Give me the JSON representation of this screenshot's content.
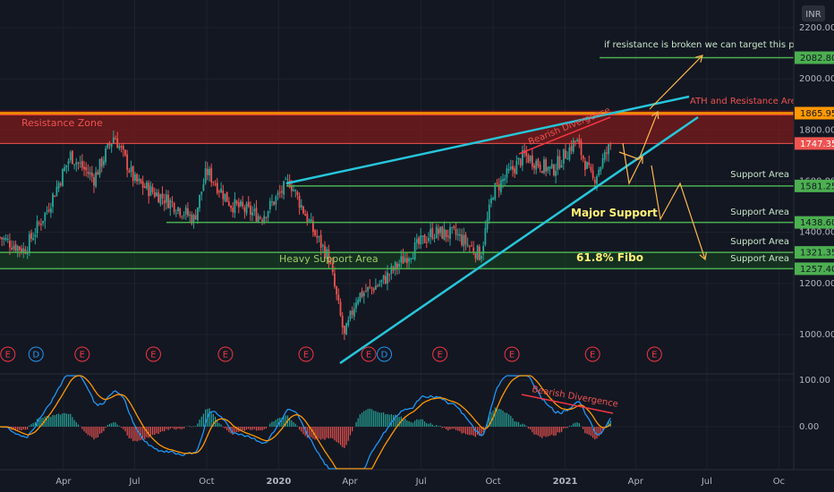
{
  "chart_data": [
    {
      "type": "candlestick",
      "currency": "INR",
      "ylim": [
        870,
        2300
      ],
      "y_ticks": [
        "2200.00",
        "2000.00",
        "1800.00",
        "1600.00",
        "1400.00",
        "1200.00",
        "1000.00"
      ],
      "y_tick_values": [
        2200,
        2000,
        1800,
        1600,
        1400,
        1200,
        1000
      ],
      "x_ticks": [
        "Apr",
        "Jul",
        "Oct",
        "2020",
        "Apr",
        "Jul",
        "Oct",
        "2021",
        "Apr",
        "Jul",
        "Oc"
      ],
      "x_tick_dates": [
        "2019-04-01",
        "2019-07-01",
        "2019-10-01",
        "2020-01-01",
        "2020-04-01",
        "2020-07-01",
        "2020-10-01",
        "2021-01-01",
        "2021-04-01",
        "2021-07-01",
        "2021-10-01"
      ],
      "x_range": [
        "2019-01-10",
        "2021-10-20"
      ],
      "price_key_points": [
        {
          "date": "2019-01-10",
          "price": 1380
        },
        {
          "date": "2019-02-10",
          "price": 1330
        },
        {
          "date": "2019-03-10",
          "price": 1480
        },
        {
          "date": "2019-04-10",
          "price": 1700
        },
        {
          "date": "2019-05-10",
          "price": 1610
        },
        {
          "date": "2019-06-05",
          "price": 1780
        },
        {
          "date": "2019-07-01",
          "price": 1600
        },
        {
          "date": "2019-08-15",
          "price": 1520
        },
        {
          "date": "2019-09-15",
          "price": 1450
        },
        {
          "date": "2019-10-01",
          "price": 1640
        },
        {
          "date": "2019-11-01",
          "price": 1510
        },
        {
          "date": "2019-12-10",
          "price": 1460
        },
        {
          "date": "2020-01-15",
          "price": 1600
        },
        {
          "date": "2020-02-15",
          "price": 1400
        },
        {
          "date": "2020-03-05",
          "price": 1300
        },
        {
          "date": "2020-03-25",
          "price": 990
        },
        {
          "date": "2020-04-10",
          "price": 1150
        },
        {
          "date": "2020-05-10",
          "price": 1200
        },
        {
          "date": "2020-06-10",
          "price": 1300
        },
        {
          "date": "2020-07-15",
          "price": 1400
        },
        {
          "date": "2020-08-15",
          "price": 1390
        },
        {
          "date": "2020-09-15",
          "price": 1310
        },
        {
          "date": "2020-10-01",
          "price": 1560
        },
        {
          "date": "2020-11-10",
          "price": 1700
        },
        {
          "date": "2020-12-15",
          "price": 1640
        },
        {
          "date": "2021-01-15",
          "price": 1760
        },
        {
          "date": "2021-02-05",
          "price": 1600
        },
        {
          "date": "2021-03-01",
          "price": 1747.35
        }
      ],
      "last_price": "1747.35",
      "levels": [
        {
          "label": "2082.80",
          "value": 2082.8,
          "color": "#4caf50"
        },
        {
          "label": "1865.95",
          "value": 1865.95,
          "color": "#ff9800"
        },
        {
          "label": "1581.25",
          "value": 1581.25,
          "color": "#4caf50"
        },
        {
          "label": "1438.60",
          "value": 1438.6,
          "color": "#4caf50"
        },
        {
          "label": "1321.35",
          "value": 1321.35,
          "color": "#4caf50"
        },
        {
          "label": "1257.40",
          "value": 1257.4,
          "color": "#4caf50"
        }
      ],
      "event_markers": [
        {
          "label": "E",
          "date": "2019-01-20",
          "color": "#f23645"
        },
        {
          "label": "D",
          "date": "2019-02-25",
          "color": "#2196f3"
        },
        {
          "label": "E",
          "date": "2019-04-25",
          "color": "#f23645"
        },
        {
          "label": "E",
          "date": "2019-07-25",
          "color": "#f23645"
        },
        {
          "label": "E",
          "date": "2019-10-25",
          "color": "#f23645"
        },
        {
          "label": "E",
          "date": "2020-02-05",
          "color": "#f23645"
        },
        {
          "label": "E",
          "date": "2020-04-25",
          "color": "#f23645"
        },
        {
          "label": "D",
          "date": "2020-05-15",
          "color": "#2196f3"
        },
        {
          "label": "E",
          "date": "2020-07-25",
          "color": "#f23645"
        },
        {
          "label": "E",
          "date": "2020-10-25",
          "color": "#f23645"
        },
        {
          "label": "E",
          "date": "2021-02-05",
          "color": "#f23645"
        },
        {
          "label": "E",
          "date": "2021-04-25",
          "color": "#f23645"
        }
      ],
      "annotations": {
        "resistance_zone": "Resistance Zone",
        "ath_resistance": "ATH and Resistance Area",
        "target_note": "if resistance is broken we can target this price",
        "support_area": "Support Area",
        "major_support": "Major Support",
        "heavy_support": "Heavy Support Area",
        "fibo": "61.8% Fibo",
        "bearish_divergence": "Bearish Divergence"
      }
    },
    {
      "type": "macd",
      "y_ticks": [
        "100.00",
        "0.00"
      ],
      "y_tick_values": [
        100,
        0
      ],
      "ylim": [
        -95,
        110
      ],
      "annotation": "Bearish Divergence"
    }
  ],
  "colors": {
    "background": "#131722",
    "candle_up": "#26a69a",
    "candle_down": "#ef5350",
    "support_line": "#4caf50",
    "trend_line": "#26c6da",
    "resistance_line": "#ff9800",
    "resistance_zone": "#8b1a1a",
    "arrow": "#ffb74d",
    "macd_line": "#2196f3",
    "signal_line": "#ff9800",
    "divergence": "#f23645"
  }
}
